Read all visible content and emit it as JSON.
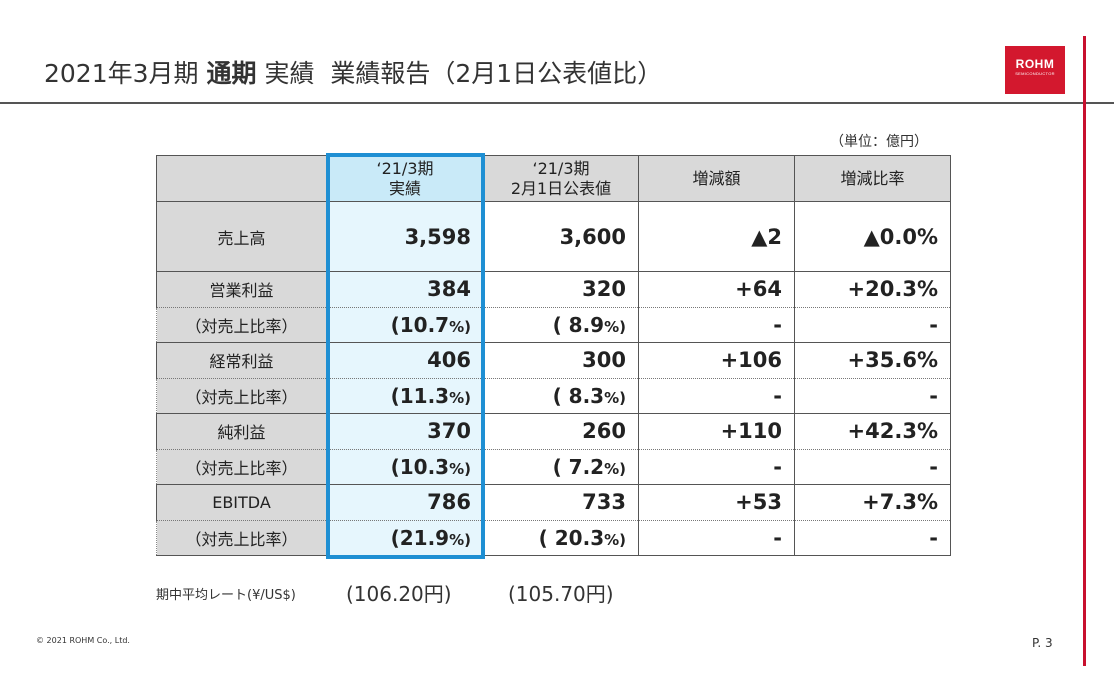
{
  "header": {
    "title_pre": "2021年3月期",
    "title_bold": "通期",
    "title_post": "実績",
    "title_sub": "業績報告（2月1日公表値比）"
  },
  "logo": {
    "line1": "ROHM",
    "line2": "SEMICONDUCTOR",
    "color": "#d3182e"
  },
  "unit_note": "（単位：億円）",
  "table": {
    "columns": [
      {
        "line1": "‘21/3期",
        "line2": "実績"
      },
      {
        "line1": "‘21/3期",
        "line2": "2月1日公表値"
      },
      {
        "line1": "増減額"
      },
      {
        "line1": "増減比率"
      }
    ],
    "sales": {
      "label": "売上高",
      "values": [
        "3,598",
        "3,600",
        "▲2",
        "▲0.0%"
      ]
    },
    "groups": [
      {
        "label": "営業利益",
        "values": [
          "384",
          "320",
          "+64",
          "+20.3%"
        ],
        "sub_label": "（対売上比率）",
        "ratio_actual": "(10.7",
        "ratio_forecast": "( 8.9",
        "pct": "%)",
        "dash": "-"
      },
      {
        "label": "経常利益",
        "values": [
          "406",
          "300",
          "+106",
          "+35.6%"
        ],
        "sub_label": "（対売上比率）",
        "ratio_actual": "(11.3",
        "ratio_forecast": "( 8.3",
        "pct": "%)",
        "dash": "-"
      },
      {
        "label": "純利益",
        "values": [
          "370",
          "260",
          "+110",
          "+42.3%"
        ],
        "sub_label": "（対売上比率）",
        "ratio_actual": "(10.3",
        "ratio_forecast": "( 7.2",
        "pct": "%)",
        "dash": "-"
      },
      {
        "label": "EBITDA",
        "values": [
          "786",
          "733",
          "+53",
          "+7.3%"
        ],
        "sub_label": "（対売上比率）",
        "ratio_actual": "(21.9",
        "ratio_forecast": "( 20.3",
        "pct": "%)",
        "dash": "-"
      }
    ],
    "highlight_color": "#1e8fd3"
  },
  "rate": {
    "label": "期中平均レート(¥/US$)",
    "actual": "(106.20円)",
    "forecast": "(105.70円)"
  },
  "footer": {
    "copyright": "© 2021 ROHM Co., Ltd.",
    "page": "P. 3"
  },
  "accent_color": "#c8102e"
}
